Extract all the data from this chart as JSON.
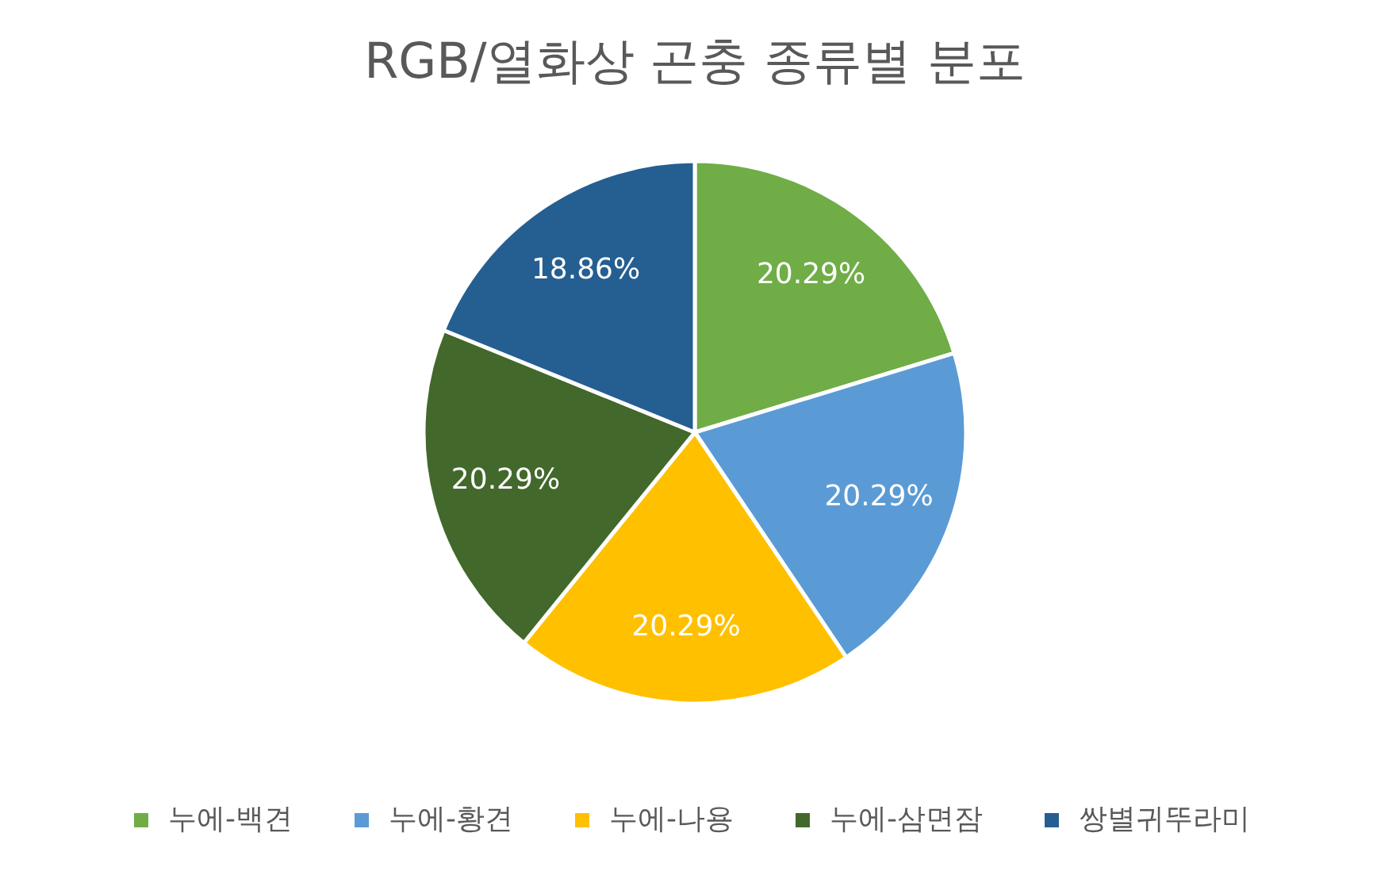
{
  "chart_data": {
    "type": "pie",
    "title": "RGB/열화상 곤충 종류별 분포",
    "categories": [
      "누에-백견",
      "누에-황견",
      "누에-나용",
      "누에-삼면잠",
      "쌍별귀뚜라미"
    ],
    "values": [
      20.29,
      20.29,
      20.29,
      20.29,
      18.86
    ],
    "colors": [
      "#70ad47",
      "#5b9bd5",
      "#ffc000",
      "#43682b",
      "#255e91"
    ],
    "value_labels": [
      "20.29%",
      "20.29%",
      "20.29%",
      "20.29%",
      "18.86%"
    ],
    "legend": "bottom"
  }
}
